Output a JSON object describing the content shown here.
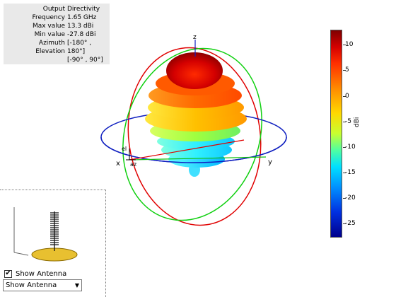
{
  "info": {
    "rows": [
      {
        "key": "Output",
        "value": "Directivity"
      },
      {
        "key": "Frequency",
        "value": "1.65 GHz"
      },
      {
        "key": "Max value",
        "value": "13.3 dBi"
      },
      {
        "key": "Min value",
        "value": "-27.8 dBi"
      },
      {
        "key": "Azimuth",
        "value": "[-180° ,"
      },
      {
        "key": "Elevation",
        "value": "180°]"
      }
    ],
    "continuation": "[-90° , 90°]"
  },
  "axes": {
    "x": "x",
    "y": "y",
    "z": "z",
    "el": "el",
    "az": "az"
  },
  "colorbar": {
    "ticks": [
      "10",
      "5",
      "0",
      "-5",
      "-10",
      "-15",
      "-20",
      "-25"
    ],
    "unit": "dBi"
  },
  "antenna_panel": {
    "checkbox_label": "Show Antenna",
    "checkbox_checked": true,
    "checkbox_mark": "✔",
    "dropdown_value": "Show Antenna"
  }
}
